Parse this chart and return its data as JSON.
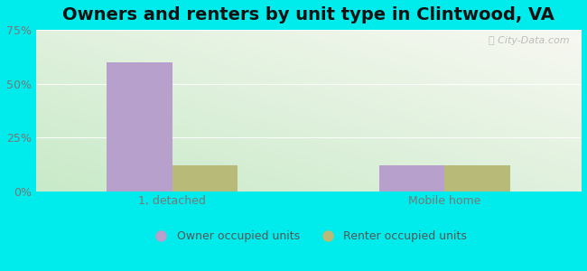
{
  "title": "Owners and renters by unit type in Clintwood, VA",
  "categories": [
    "1, detached",
    "Mobile home"
  ],
  "owner_values": [
    60,
    12
  ],
  "renter_values": [
    12,
    12
  ],
  "owner_color": "#b8a0cc",
  "renter_color": "#b8bb78",
  "bar_width": 0.12,
  "ylim": [
    0,
    75
  ],
  "yticks": [
    0,
    25,
    50,
    75
  ],
  "ytick_labels": [
    "0%",
    "25%",
    "50%",
    "75%"
  ],
  "legend_labels": [
    "Owner occupied units",
    "Renter occupied units"
  ],
  "background_color": "#00ecec",
  "plot_bg_colors": [
    "#c8eac8",
    "#eaf0e0",
    "#f0f4e8",
    "#f8f8f2"
  ],
  "watermark": "City-Data.com",
  "title_fontsize": 14,
  "tick_fontsize": 9,
  "legend_fontsize": 9,
  "group_positions": [
    0.25,
    0.75
  ],
  "xlim": [
    0,
    1
  ]
}
